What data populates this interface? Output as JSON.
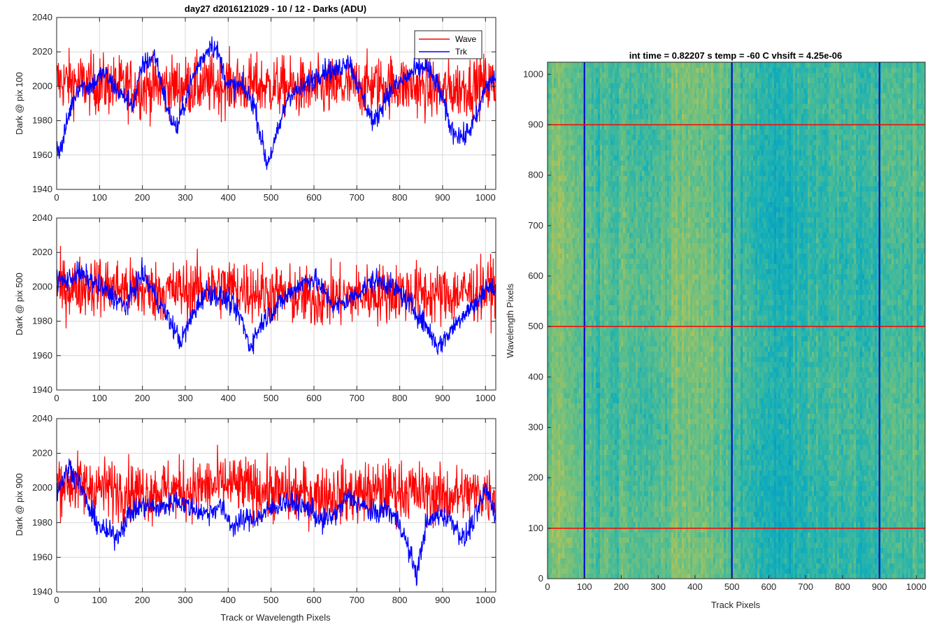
{
  "chart_data": [
    {
      "type": "line",
      "title": "day27 d2016121029 - 10 / 12 - Darks (ADU)",
      "xlabel": "",
      "ylabel": "Dark @ pix 100",
      "xlim": [
        0,
        1024
      ],
      "ylim": [
        1940,
        2040
      ],
      "xticks": [
        "0",
        "100",
        "200",
        "300",
        "400",
        "500",
        "600",
        "700",
        "800",
        "900",
        "1000"
      ],
      "yticks": [
        "1940",
        "1960",
        "1980",
        "2000",
        "2020",
        "2040"
      ],
      "grid": true,
      "legend": {
        "position": "top-right",
        "entries": [
          "Wave",
          "Trk"
        ]
      },
      "series": [
        {
          "name": "Wave",
          "color": "#ff0000",
          "mean_y": 2000,
          "noise_amplitude": 12,
          "x": [
            0,
            100,
            200,
            300,
            400,
            500,
            600,
            700,
            800,
            900,
            1000,
            1024
          ],
          "y": [
            2003,
            2001,
            1999,
            2000,
            2001,
            2000,
            1998,
            2000,
            2001,
            1997,
            2002,
            2000
          ]
        },
        {
          "name": "Trk",
          "color": "#0000ff",
          "x": [
            0,
            10,
            30,
            50,
            80,
            110,
            150,
            180,
            200,
            230,
            260,
            280,
            310,
            330,
            360,
            375,
            400,
            430,
            460,
            490,
            510,
            540,
            570,
            600,
            625,
            650,
            680,
            710,
            740,
            770,
            800,
            830,
            860,
            890,
            920,
            950,
            980,
            1000,
            1024
          ],
          "y": [
            1965,
            1963,
            1985,
            2000,
            2000,
            2008,
            1995,
            1990,
            2012,
            2018,
            1985,
            1975,
            2000,
            2012,
            2025,
            2020,
            2000,
            2000,
            1990,
            1955,
            1968,
            1995,
            1998,
            2005,
            2010,
            2008,
            2016,
            1996,
            1978,
            1995,
            2002,
            2008,
            2012,
            2000,
            1975,
            1970,
            1982,
            2000,
            2005
          ]
        }
      ]
    },
    {
      "type": "line",
      "title": "",
      "xlabel": "",
      "ylabel": "Dark @ pix 500",
      "xlim": [
        0,
        1024
      ],
      "ylim": [
        1940,
        2040
      ],
      "xticks": [
        "0",
        "100",
        "200",
        "300",
        "400",
        "500",
        "600",
        "700",
        "800",
        "900",
        "1000"
      ],
      "yticks": [
        "1940",
        "1960",
        "1980",
        "2000",
        "2020",
        "2040"
      ],
      "grid": true,
      "series": [
        {
          "name": "Wave",
          "color": "#ff0000",
          "mean_y": 1997,
          "noise_amplitude": 12,
          "x": [
            0,
            100,
            200,
            300,
            400,
            500,
            600,
            700,
            800,
            900,
            1000,
            1024
          ],
          "y": [
            1999,
            2001,
            1997,
            1998,
            2000,
            1996,
            1993,
            1995,
            1997,
            1995,
            1998,
            2000
          ]
        },
        {
          "name": "Trk",
          "color": "#0000ff",
          "x": [
            0,
            20,
            50,
            80,
            100,
            130,
            160,
            200,
            230,
            260,
            290,
            320,
            350,
            370,
            400,
            430,
            450,
            480,
            510,
            540,
            570,
            600,
            630,
            650,
            680,
            710,
            740,
            770,
            800,
            830,
            860,
            890,
            920,
            950,
            980,
            1000,
            1024
          ],
          "y": [
            2005,
            2003,
            2008,
            2004,
            2000,
            1995,
            1988,
            2008,
            1995,
            1982,
            1968,
            1985,
            1998,
            1995,
            1992,
            1982,
            1965,
            1980,
            1988,
            1995,
            2002,
            2005,
            1995,
            1988,
            1992,
            1998,
            2004,
            2002,
            1997,
            1988,
            1978,
            1965,
            1975,
            1985,
            1990,
            2000,
            1998
          ]
        }
      ]
    },
    {
      "type": "line",
      "title": "",
      "xlabel": "Track or Wavelength Pixels",
      "ylabel": "Dark @ pix 900",
      "xlim": [
        0,
        1024
      ],
      "ylim": [
        1940,
        2040
      ],
      "xticks": [
        "0",
        "100",
        "200",
        "300",
        "400",
        "500",
        "600",
        "700",
        "800",
        "900",
        "1000"
      ],
      "yticks": [
        "1940",
        "1960",
        "1980",
        "2000",
        "2020",
        "2040"
      ],
      "grid": true,
      "series": [
        {
          "name": "Wave",
          "color": "#ff0000",
          "mean_y": 1998,
          "noise_amplitude": 12,
          "x": [
            0,
            100,
            200,
            300,
            400,
            500,
            600,
            700,
            800,
            900,
            1000,
            1024
          ],
          "y": [
            2004,
            2000,
            1998,
            1999,
            2002,
            1998,
            1996,
            1997,
            1999,
            1995,
            1997,
            1996
          ]
        },
        {
          "name": "Trk",
          "color": "#0000ff",
          "x": [
            0,
            30,
            50,
            80,
            110,
            140,
            170,
            200,
            240,
            280,
            320,
            350,
            380,
            410,
            440,
            470,
            500,
            530,
            560,
            590,
            620,
            650,
            680,
            710,
            740,
            770,
            800,
            820,
            840,
            860,
            890,
            920,
            950,
            980,
            1000,
            1024
          ],
          "y": [
            1998,
            2012,
            2005,
            1985,
            1975,
            1972,
            1985,
            1990,
            1988,
            1993,
            1988,
            1985,
            1990,
            1978,
            1982,
            1983,
            1988,
            1992,
            1990,
            1988,
            1980,
            1985,
            1995,
            1990,
            1985,
            1988,
            1980,
            1965,
            1950,
            1978,
            1985,
            1982,
            1970,
            1985,
            2000,
            1985
          ]
        }
      ]
    },
    {
      "type": "heatmap",
      "title": "int time = 0.82207 s    temp = -60 C    vhsift = 4.25e-06",
      "xlabel": "Track Pixels",
      "ylabel": "Wavelength Pixels",
      "xlim": [
        0,
        1024
      ],
      "ylim": [
        0,
        1024
      ],
      "xticks": [
        "0",
        "100",
        "200",
        "300",
        "400",
        "500",
        "600",
        "700",
        "800",
        "900",
        "1000"
      ],
      "yticks": [
        "0",
        "100",
        "200",
        "300",
        "400",
        "500",
        "600",
        "700",
        "800",
        "900",
        "1000"
      ],
      "colormap": "parula",
      "vertical_lines": [
        {
          "x": 100,
          "color": "#0000cc"
        },
        {
          "x": 500,
          "color": "#0000cc"
        },
        {
          "x": 900,
          "color": "#0000cc"
        }
      ],
      "horizontal_lines": [
        {
          "y": 100,
          "color": "#ff0000"
        },
        {
          "y": 500,
          "color": "#ff0000"
        },
        {
          "y": 900,
          "color": "#ff0000"
        }
      ]
    }
  ]
}
